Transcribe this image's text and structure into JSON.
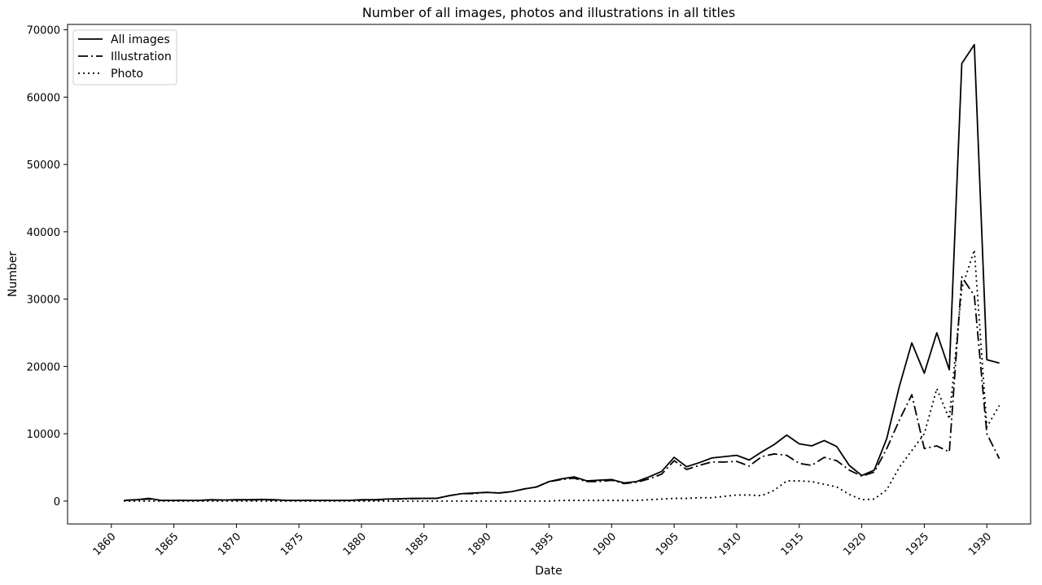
{
  "chart_data": {
    "type": "line",
    "title": "Number of all images, photos and illustrations in all titles",
    "xlabel": "Date",
    "ylabel": "Number",
    "xlim": [
      1856.5,
      1933.5
    ],
    "ylim": [
      -3400,
      70800
    ],
    "xticks": [
      1860,
      1865,
      1870,
      1875,
      1880,
      1885,
      1890,
      1895,
      1900,
      1905,
      1910,
      1915,
      1920,
      1925,
      1930
    ],
    "yticks": [
      0,
      10000,
      20000,
      30000,
      40000,
      50000,
      60000,
      70000
    ],
    "grid": false,
    "legend_position": "top-left",
    "x": [
      1861,
      1862,
      1863,
      1864,
      1865,
      1866,
      1867,
      1868,
      1869,
      1870,
      1871,
      1872,
      1873,
      1874,
      1875,
      1876,
      1877,
      1878,
      1879,
      1880,
      1881,
      1882,
      1883,
      1884,
      1885,
      1886,
      1887,
      1888,
      1889,
      1890,
      1891,
      1892,
      1893,
      1894,
      1895,
      1896,
      1897,
      1898,
      1899,
      1900,
      1901,
      1902,
      1903,
      1904,
      1905,
      1906,
      1907,
      1908,
      1909,
      1910,
      1911,
      1912,
      1913,
      1914,
      1915,
      1916,
      1917,
      1918,
      1919,
      1920,
      1921,
      1922,
      1923,
      1924,
      1925,
      1926,
      1927,
      1928,
      1929,
      1930,
      1931
    ],
    "series": [
      {
        "name": "All images",
        "style": "solid",
        "values": [
          100,
          200,
          400,
          100,
          100,
          100,
          100,
          200,
          150,
          200,
          200,
          250,
          200,
          100,
          100,
          100,
          100,
          100,
          100,
          200,
          200,
          300,
          350,
          400,
          400,
          400,
          800,
          1100,
          1200,
          1300,
          1200,
          1400,
          1800,
          2100,
          2900,
          3300,
          3600,
          3000,
          3100,
          3200,
          2700,
          2900,
          3600,
          4400,
          6500,
          5100,
          5700,
          6400,
          6600,
          6800,
          6100,
          7300,
          8400,
          9800,
          8500,
          8200,
          9000,
          8100,
          5300,
          3800,
          4600,
          9300,
          17000,
          23500,
          19000,
          25000,
          19500,
          65000,
          67800,
          21000,
          20500
        ]
      },
      {
        "name": "Illustration",
        "style": "dashdot",
        "values": [
          100,
          200,
          300,
          100,
          100,
          100,
          100,
          150,
          150,
          150,
          150,
          200,
          150,
          100,
          100,
          100,
          100,
          100,
          100,
          150,
          150,
          250,
          300,
          350,
          400,
          400,
          800,
          1100,
          1100,
          1300,
          1200,
          1400,
          1800,
          2100,
          2900,
          3200,
          3400,
          2900,
          2900,
          3100,
          2600,
          2800,
          3300,
          4000,
          6000,
          4700,
          5300,
          5800,
          5800,
          5900,
          5200,
          6600,
          7000,
          6800,
          5600,
          5300,
          6500,
          6000,
          4600,
          3700,
          4300,
          7800,
          12000,
          15800,
          7800,
          8200,
          7300,
          33300,
          30500,
          10000,
          6300
        ]
      },
      {
        "name": "Photo",
        "style": "dotted",
        "values": [
          0,
          0,
          0,
          0,
          0,
          0,
          0,
          0,
          0,
          0,
          0,
          0,
          0,
          0,
          0,
          0,
          0,
          0,
          0,
          0,
          0,
          0,
          0,
          0,
          0,
          0,
          0,
          0,
          0,
          0,
          0,
          0,
          0,
          0,
          0,
          100,
          100,
          100,
          100,
          100,
          100,
          100,
          200,
          300,
          400,
          400,
          500,
          500,
          700,
          900,
          900,
          800,
          1600,
          3000,
          3000,
          2900,
          2500,
          2100,
          1000,
          200,
          300,
          1700,
          5000,
          7500,
          10000,
          16700,
          12200,
          31600,
          37300,
          11000,
          14200
        ]
      }
    ]
  }
}
